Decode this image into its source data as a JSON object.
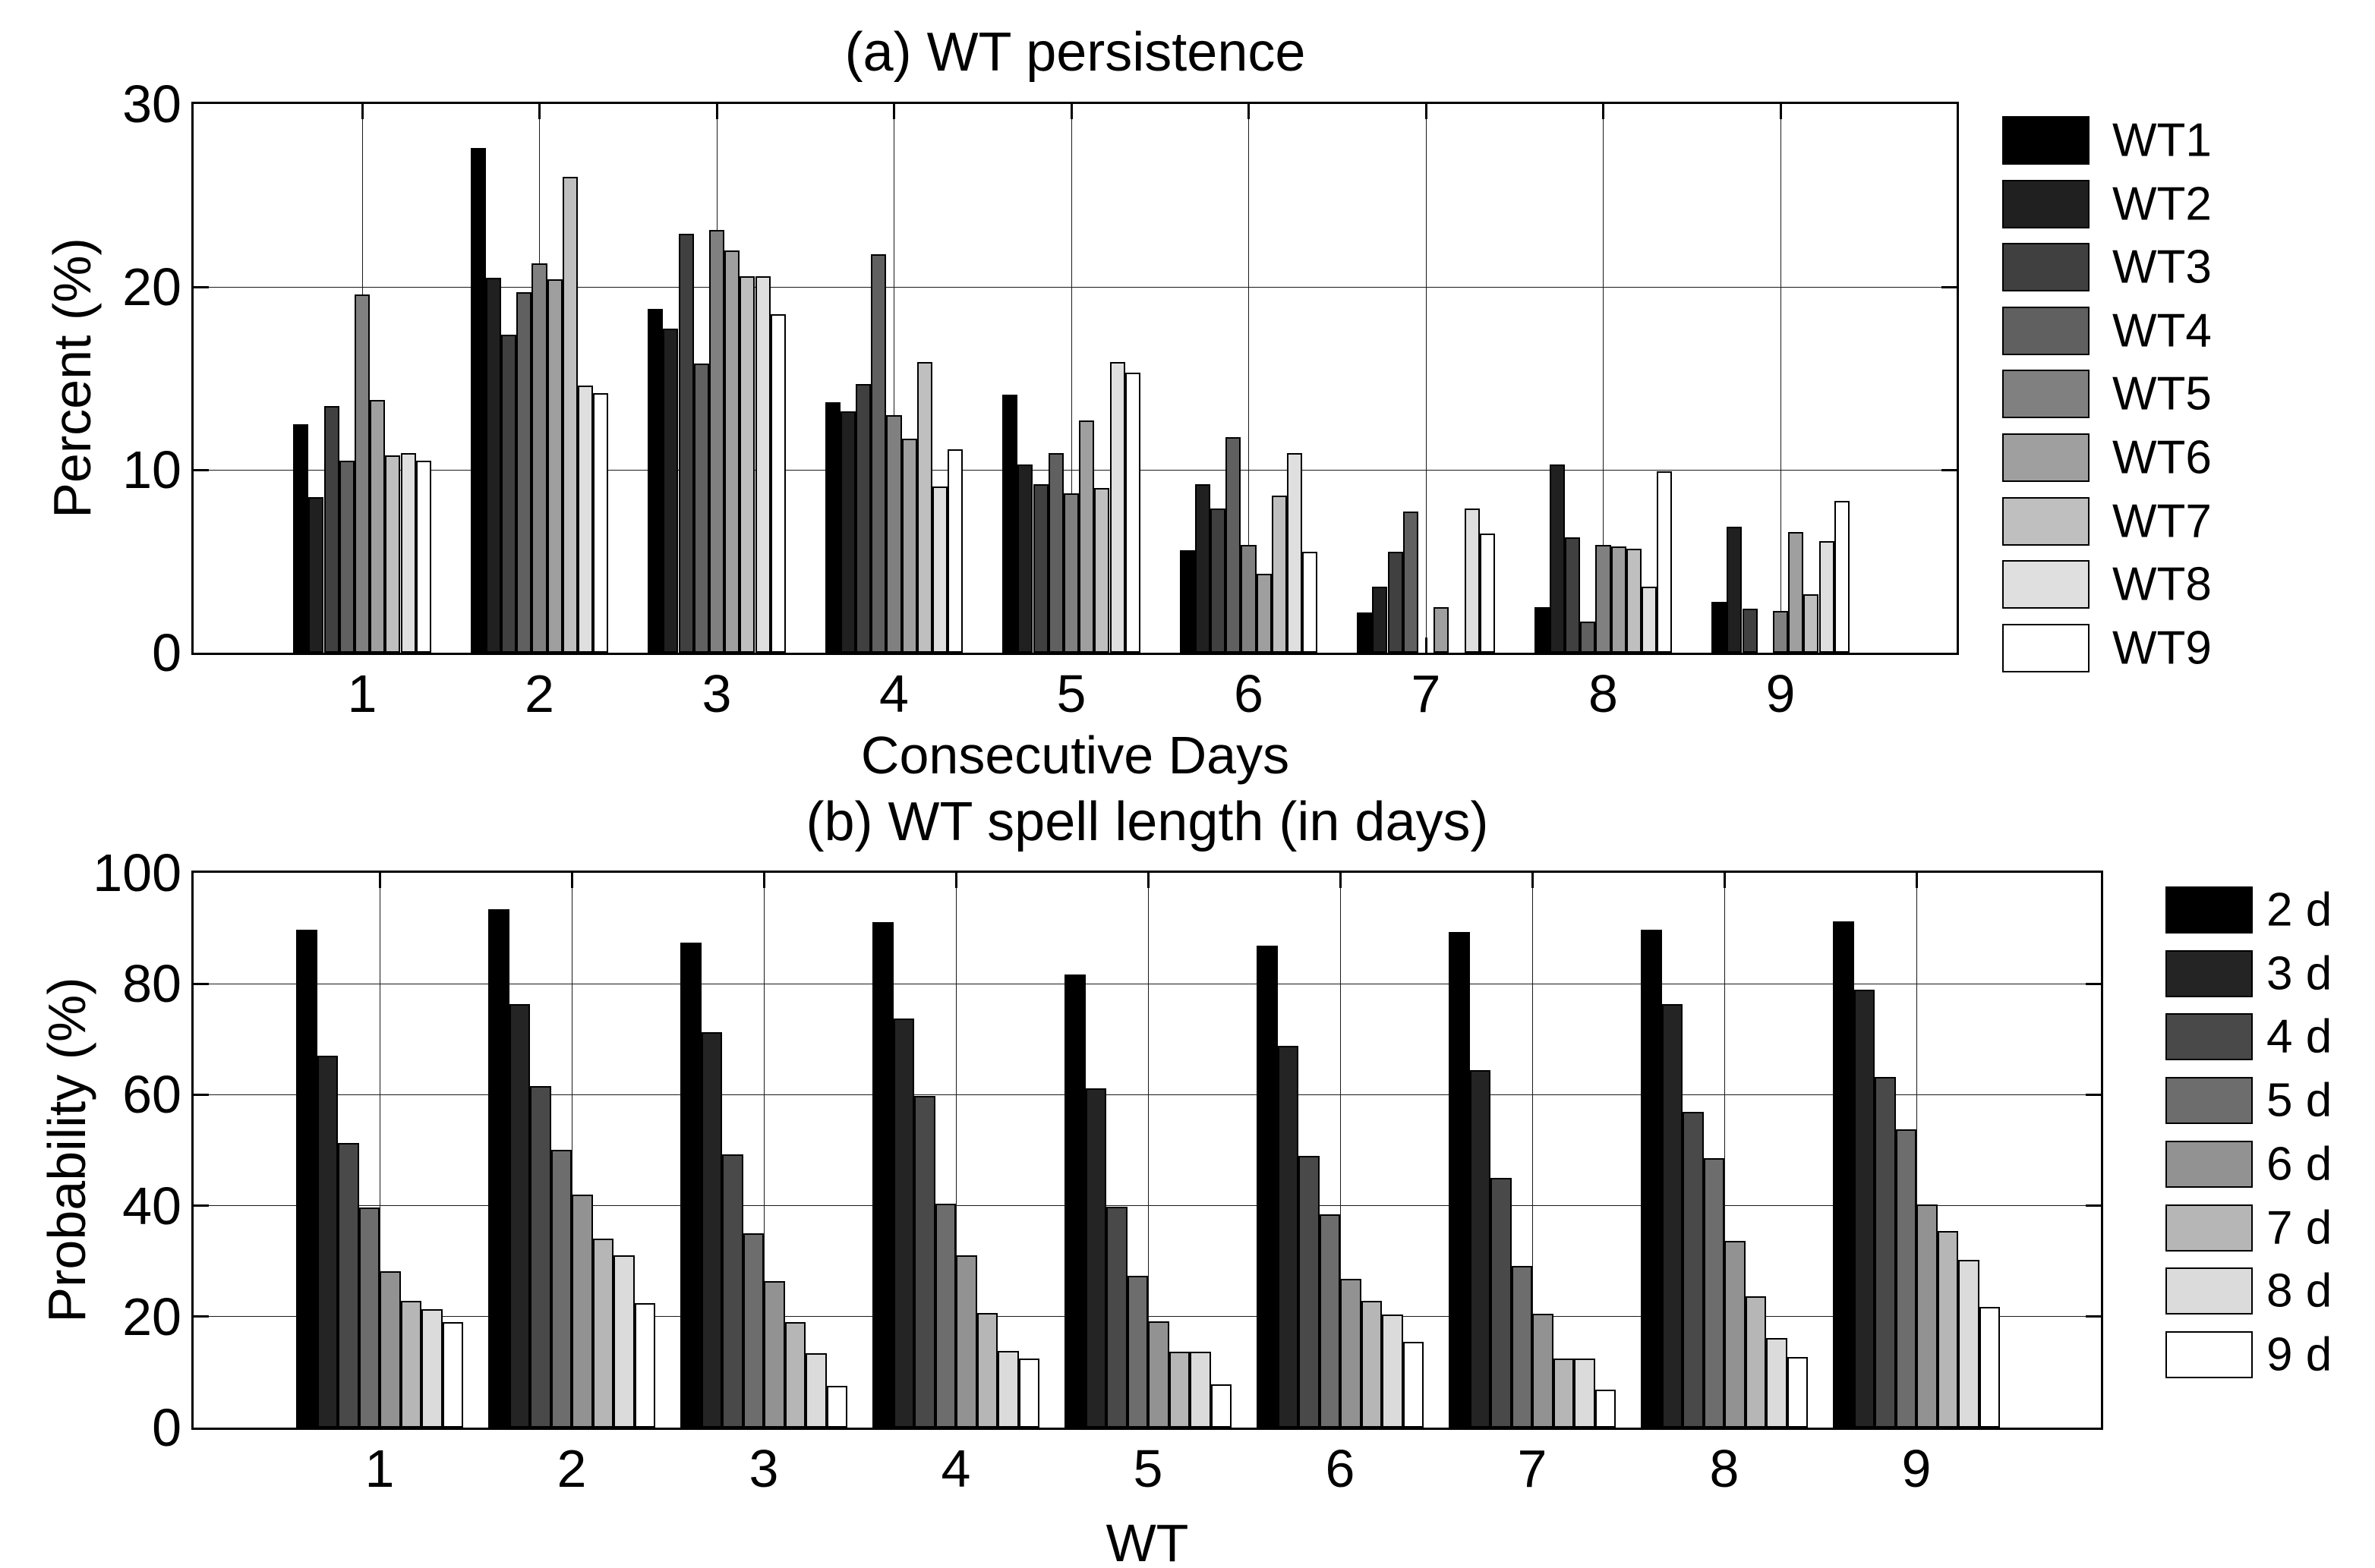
{
  "figure_background": "#ffffff",
  "chart_data": [
    {
      "type": "bar",
      "title": "(a) WT persistence",
      "xlabel": "Consecutive Days",
      "ylabel": "Percent (%)",
      "ylim": [
        0,
        30
      ],
      "yticks": [
        0,
        10,
        20,
        30
      ],
      "categories": [
        "1",
        "2",
        "3",
        "4",
        "5",
        "6",
        "7",
        "8",
        "9"
      ],
      "grid": true,
      "legend_position": "right-outside",
      "series": [
        {
          "name": "WT1",
          "color": "#000000",
          "values": [
            12.5,
            27.6,
            18.8,
            13.7,
            14.1,
            5.6,
            2.2,
            2.5,
            2.8
          ]
        },
        {
          "name": "WT2",
          "color": "#202020",
          "values": [
            8.5,
            20.5,
            17.7,
            13.2,
            10.3,
            9.2,
            3.6,
            10.3,
            6.9
          ]
        },
        {
          "name": "WT3",
          "color": "#404040",
          "values": [
            13.5,
            17.4,
            22.9,
            14.7,
            9.2,
            7.9,
            5.5,
            6.3,
            2.4
          ]
        },
        {
          "name": "WT4",
          "color": "#606060",
          "values": [
            10.5,
            19.7,
            15.8,
            21.8,
            10.9,
            11.8,
            7.7,
            1.7,
            0
          ]
        },
        {
          "name": "WT5",
          "color": "#808080",
          "values": [
            19.6,
            21.3,
            23.1,
            13.0,
            8.7,
            5.9,
            0,
            5.9,
            2.3
          ]
        },
        {
          "name": "WT6",
          "color": "#9F9F9F",
          "values": [
            13.8,
            20.4,
            22.0,
            11.7,
            12.7,
            4.3,
            2.5,
            5.8,
            6.6
          ]
        },
        {
          "name": "WT7",
          "color": "#BFBFBF",
          "values": [
            10.8,
            26.0,
            20.6,
            15.9,
            9.0,
            8.6,
            0,
            5.7,
            3.2
          ]
        },
        {
          "name": "WT8",
          "color": "#DFDFDF",
          "values": [
            10.9,
            14.6,
            20.6,
            9.1,
            15.9,
            10.9,
            7.9,
            3.6,
            6.1
          ]
        },
        {
          "name": "WT9",
          "color": "#FFFFFF",
          "values": [
            10.5,
            14.2,
            18.5,
            11.1,
            15.3,
            5.5,
            6.5,
            9.9,
            8.3
          ]
        }
      ]
    },
    {
      "type": "bar",
      "title": "(b) WT spell length (in days)",
      "xlabel": "WT",
      "ylabel": "Probability (%)",
      "ylim": [
        0,
        100
      ],
      "yticks": [
        0,
        20,
        40,
        60,
        80,
        100
      ],
      "categories": [
        "1",
        "2",
        "3",
        "4",
        "5",
        "6",
        "7",
        "8",
        "9"
      ],
      "grid": true,
      "legend_position": "right-outside",
      "series": [
        {
          "name": "2 d",
          "color": "#000000",
          "values": [
            89.8,
            93.4,
            87.4,
            91.1,
            81.7,
            86.8,
            89.3,
            89.8,
            91.2
          ]
        },
        {
          "name": "3 d",
          "color": "#242424",
          "values": [
            67.0,
            76.3,
            71.3,
            73.8,
            61.2,
            68.8,
            64.4,
            76.4,
            79.0
          ]
        },
        {
          "name": "4 d",
          "color": "#494949",
          "values": [
            51.3,
            61.6,
            49.2,
            59.8,
            39.8,
            49.0,
            45.0,
            56.9,
            63.2
          ]
        },
        {
          "name": "5 d",
          "color": "#6D6D6D",
          "values": [
            39.7,
            50.1,
            35.0,
            40.4,
            27.3,
            38.4,
            29.2,
            48.6,
            53.8
          ]
        },
        {
          "name": "6 d",
          "color": "#929292",
          "values": [
            28.2,
            42.0,
            26.4,
            31.0,
            19.1,
            26.8,
            20.5,
            33.6,
            40.2
          ]
        },
        {
          "name": "7 d",
          "color": "#B6B6B6",
          "values": [
            22.8,
            34.1,
            19.0,
            20.6,
            13.7,
            22.9,
            12.5,
            23.6,
            35.4
          ]
        },
        {
          "name": "8 d",
          "color": "#DBDBDB",
          "values": [
            21.3,
            31.1,
            13.4,
            13.8,
            13.7,
            20.4,
            12.5,
            16.2,
            30.2
          ]
        },
        {
          "name": "9 d",
          "color": "#FFFFFF",
          "values": [
            19.0,
            22.4,
            7.5,
            12.5,
            7.8,
            15.5,
            6.9,
            12.7,
            21.7
          ]
        }
      ]
    }
  ]
}
